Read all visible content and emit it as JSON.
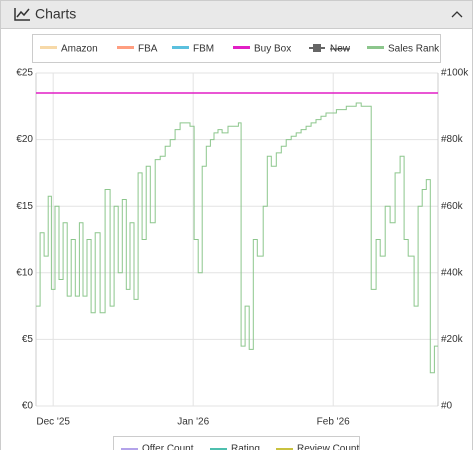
{
  "panel": {
    "title": "Charts"
  },
  "chart_data": {
    "type": "line",
    "xlim": [
      -3.8,
      85.2
    ],
    "xticks": [
      {
        "value": 0,
        "label": "Dec '25"
      },
      {
        "value": 31,
        "label": "Jan '26"
      },
      {
        "value": 62,
        "label": "Feb '26"
      }
    ],
    "ylim": [
      0,
      25
    ],
    "yticks": [
      {
        "value": 0,
        "label": "€0"
      },
      {
        "value": 5,
        "label": "€5"
      },
      {
        "value": 10,
        "label": "€10"
      },
      {
        "value": 15,
        "label": "€15"
      },
      {
        "value": 20,
        "label": "€20"
      },
      {
        "value": 25,
        "label": "€25"
      }
    ],
    "y2lim": [
      0,
      100000
    ],
    "y2ticks": [
      {
        "value": 0,
        "label": "#0"
      },
      {
        "value": 20000,
        "label": "#20k"
      },
      {
        "value": 40000,
        "label": "#40k"
      },
      {
        "value": 60000,
        "label": "#60k"
      },
      {
        "value": 80000,
        "label": "#80k"
      },
      {
        "value": 100000,
        "label": "#100k"
      }
    ],
    "grid": true,
    "step": true,
    "series": [
      {
        "name": "Amazon",
        "color": "#f7d9a8"
      },
      {
        "name": "FBA",
        "color": "#ff9e80"
      },
      {
        "name": "FBM",
        "color": "#5bc0de"
      },
      {
        "name": "Buy Box",
        "color": "#e21fc5",
        "x": [
          -3.8,
          85.2
        ],
        "values": [
          23.5,
          23.5
        ]
      },
      {
        "name": "New",
        "color": "#666666",
        "hidden": true
      },
      {
        "name": "Sales Rank",
        "color": "#8cc68c",
        "axis": "y2",
        "x": [
          -3.8,
          -2.9,
          -2.0,
          -1.1,
          -0.4,
          0.4,
          1.3,
          2.2,
          3.1,
          4.0,
          4.9,
          5.8,
          6.6,
          7.5,
          8.4,
          9.3,
          10.4,
          11.5,
          12.6,
          13.5,
          14.4,
          15.3,
          16.2,
          17.0,
          17.9,
          18.8,
          19.7,
          20.6,
          21.5,
          22.6,
          23.7,
          24.8,
          25.9,
          27.0,
          28.1,
          29.2,
          30.3,
          31.2,
          32.1,
          33.0,
          33.9,
          34.8,
          35.6,
          36.5,
          37.4,
          38.7,
          39.6,
          41.0,
          41.6,
          42.5,
          43.4,
          44.3,
          45.2,
          46.5,
          47.4,
          48.3,
          49.4,
          50.5,
          51.6,
          52.7,
          53.8,
          54.9,
          56.0,
          57.1,
          58.2,
          59.3,
          60.4,
          61.5,
          62.7,
          63.8,
          64.9,
          66.0,
          67.1,
          68.2,
          69.3,
          70.4,
          71.5,
          72.4,
          73.5,
          74.6,
          75.7,
          76.8,
          77.7,
          78.6,
          79.9,
          80.8,
          81.7,
          82.6,
          83.5,
          84.4,
          85.2
        ],
        "values": [
          30000,
          52000,
          45000,
          63000,
          35000,
          60000,
          38000,
          55000,
          33000,
          50000,
          33000,
          55000,
          33000,
          50000,
          28000,
          52000,
          28000,
          65000,
          30000,
          60000,
          40000,
          62000,
          35000,
          55000,
          32000,
          70000,
          50000,
          72000,
          55000,
          74000,
          75000,
          78000,
          80000,
          83000,
          85000,
          85000,
          84000,
          50000,
          40000,
          72000,
          78000,
          80000,
          82000,
          83000,
          82000,
          84000,
          84000,
          85000,
          18000,
          30000,
          17000,
          50000,
          45000,
          60000,
          75000,
          72000,
          76000,
          78000,
          80000,
          81000,
          82000,
          83000,
          84000,
          85000,
          86000,
          87000,
          88000,
          88000,
          89000,
          89000,
          90000,
          90000,
          91000,
          90000,
          90000,
          35000,
          50000,
          45000,
          60000,
          55000,
          70000,
          75000,
          50000,
          45000,
          30000,
          60000,
          65000,
          68000,
          10000,
          18000,
          18000
        ]
      }
    ],
    "lower_legend": [
      {
        "name": "Offer Count",
        "color": "#b3a3ea"
      },
      {
        "name": "Rating",
        "color": "#4dbfae"
      },
      {
        "name": "Review Count",
        "color": "#c9c23f"
      }
    ]
  }
}
